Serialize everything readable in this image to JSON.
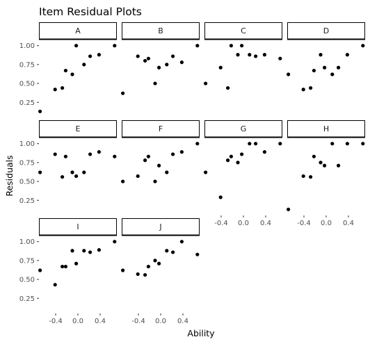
{
  "chart_data": {
    "type": "scatter",
    "title": "Item Residual Plots",
    "xlabel": "Ability",
    "ylabel": "Residuals",
    "xlim": [
      -0.7,
      0.7
    ],
    "ylim": [
      0.05,
      1.08
    ],
    "x_ticks": [
      -0.4,
      0.0,
      0.4
    ],
    "x_tick_labels": [
      "-0.4",
      "0.0",
      "0.4"
    ],
    "y_ticks": [
      0.25,
      0.5,
      0.75,
      1.0
    ],
    "y_tick_labels": [
      "0.25",
      "0.50",
      "0.75",
      "1.00"
    ],
    "ability": [
      -0.68,
      -0.41,
      -0.28,
      -0.22,
      -0.1,
      -0.03,
      0.11,
      0.22,
      0.38,
      0.66
    ],
    "panels": [
      {
        "label": "A",
        "residuals": [
          0.13,
          0.42,
          0.44,
          0.67,
          0.62,
          1.0,
          0.75,
          0.86,
          0.88,
          1.0
        ]
      },
      {
        "label": "B",
        "residuals": [
          0.37,
          0.86,
          0.8,
          0.83,
          0.5,
          0.71,
          0.75,
          0.86,
          0.78,
          1.0
        ]
      },
      {
        "label": "C",
        "residuals": [
          0.5,
          0.71,
          0.44,
          1.0,
          0.88,
          1.0,
          0.88,
          0.86,
          0.88,
          0.83
        ]
      },
      {
        "label": "D",
        "residuals": [
          0.62,
          0.42,
          0.44,
          0.67,
          0.88,
          0.71,
          0.62,
          0.71,
          0.88,
          1.0
        ]
      },
      {
        "label": "E",
        "residuals": [
          0.62,
          0.86,
          0.56,
          0.83,
          0.62,
          0.57,
          0.62,
          0.86,
          0.89,
          0.83
        ]
      },
      {
        "label": "F",
        "residuals": [
          0.5,
          0.57,
          0.78,
          0.83,
          0.5,
          0.71,
          0.62,
          0.86,
          0.89,
          1.0
        ]
      },
      {
        "label": "G",
        "residuals": [
          0.62,
          0.29,
          0.78,
          0.83,
          0.75,
          0.86,
          1.0,
          1.0,
          0.89,
          1.0
        ]
      },
      {
        "label": "H",
        "residuals": [
          0.13,
          0.57,
          0.56,
          0.83,
          0.75,
          0.71,
          1.0,
          0.71,
          1.0,
          1.0
        ]
      },
      {
        "label": "I",
        "residuals": [
          0.62,
          0.43,
          0.67,
          0.67,
          0.88,
          0.71,
          0.88,
          0.86,
          0.89,
          1.0
        ]
      },
      {
        "label": "J",
        "residuals": [
          0.62,
          0.57,
          0.56,
          0.67,
          0.75,
          0.71,
          0.88,
          0.86,
          1.0,
          0.83
        ]
      }
    ]
  }
}
